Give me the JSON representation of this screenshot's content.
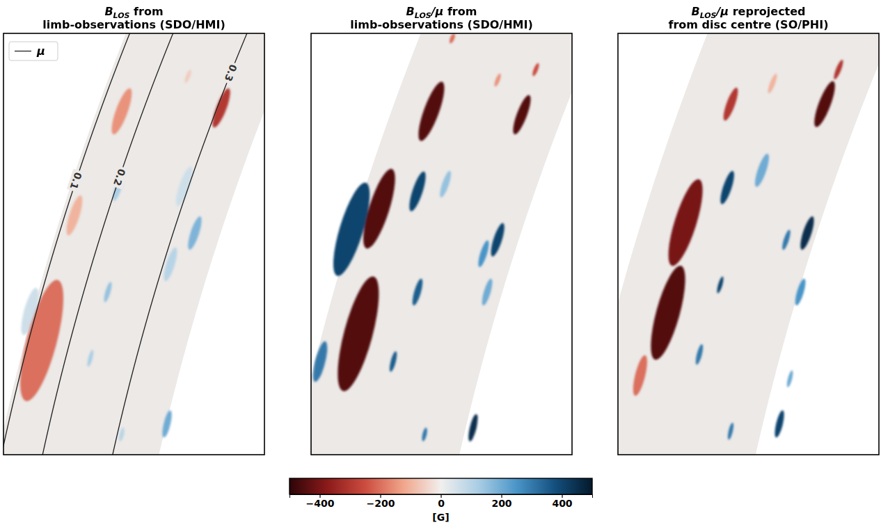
{
  "chart_data": {
    "type": "image-panels",
    "panels": [
      {
        "title": [
          [
            {
              "text": "B",
              "style": "italic"
            },
            {
              "text": "LOS",
              "style": "italic-sub"
            },
            {
              "text": " from"
            }
          ],
          [
            {
              "text": "limb-observations (SDO/HMI)"
            }
          ]
        ],
        "xlim": [
          0,
          1
        ],
        "ylim": [
          0,
          1
        ],
        "tick_labels": false,
        "contours": {
          "name": "μ",
          "levels": [
            0.1,
            0.2,
            0.3
          ],
          "color": "#222222"
        },
        "legend": "upper left",
        "features": [
          {
            "x": 0.693,
            "y": 0.363,
            "value": 60,
            "size": 0.099
          },
          {
            "x": 0.101,
            "y": 0.66,
            "value": 60,
            "size": 0.116
          },
          {
            "x": 0.707,
            "y": 0.102,
            "value": -60,
            "size": 0.033
          },
          {
            "x": 0.272,
            "y": 0.432,
            "value": -100,
            "size": 0.099
          },
          {
            "x": 0.64,
            "y": 0.548,
            "value": 100,
            "size": 0.083
          },
          {
            "x": 0.453,
            "y": 0.952,
            "value": 100,
            "size": 0.033
          },
          {
            "x": 0.44,
            "y": 0.366,
            "value": 120,
            "size": 0.066
          },
          {
            "x": 0.333,
            "y": 0.771,
            "value": 120,
            "size": 0.041
          },
          {
            "x": 0.4,
            "y": 0.614,
            "value": 150,
            "size": 0.05
          },
          {
            "x": 0.453,
            "y": 0.185,
            "value": -150,
            "size": 0.116
          },
          {
            "x": 0.733,
            "y": 0.474,
            "value": 180,
            "size": 0.083
          },
          {
            "x": 0.627,
            "y": 0.927,
            "value": 200,
            "size": 0.066
          },
          {
            "x": 0.147,
            "y": 0.729,
            "value": -200,
            "size": 0.297
          },
          {
            "x": 0.835,
            "y": 0.177,
            "value": -300,
            "size": 0.099
          }
        ]
      },
      {
        "title": [
          [
            {
              "text": "B",
              "style": "italic"
            },
            {
              "text": "LOS",
              "style": "italic-sub"
            },
            {
              "text": "/μ",
              "style": "italic"
            },
            {
              "text": " from"
            }
          ],
          [
            {
              "text": "limb-observations (SDO/HMI)"
            }
          ]
        ],
        "xlim": [
          0,
          1
        ],
        "ylim": [
          0,
          1
        ],
        "tick_labels": false,
        "features": [
          {
            "x": 0.515,
            "y": 0.358,
            "value": 150,
            "size": 0.066
          },
          {
            "x": 0.715,
            "y": 0.111,
            "value": -150,
            "size": 0.033
          },
          {
            "x": 0.541,
            "y": 0.012,
            "value": -200,
            "size": 0.025
          },
          {
            "x": 0.675,
            "y": 0.614,
            "value": 200,
            "size": 0.066
          },
          {
            "x": 0.861,
            "y": 0.086,
            "value": -250,
            "size": 0.033
          },
          {
            "x": 0.661,
            "y": 0.523,
            "value": 250,
            "size": 0.066
          },
          {
            "x": 0.035,
            "y": 0.779,
            "value": 300,
            "size": 0.099
          },
          {
            "x": 0.435,
            "y": 0.952,
            "value": 300,
            "size": 0.033
          },
          {
            "x": 0.315,
            "y": 0.779,
            "value": 350,
            "size": 0.05
          },
          {
            "x": 0.408,
            "y": 0.614,
            "value": 350,
            "size": 0.066
          },
          {
            "x": 0.155,
            "y": 0.465,
            "value": 400,
            "size": 0.231
          },
          {
            "x": 0.715,
            "y": 0.49,
            "value": 400,
            "size": 0.083
          },
          {
            "x": 0.408,
            "y": 0.375,
            "value": 400,
            "size": 0.099
          },
          {
            "x": 0.621,
            "y": 0.936,
            "value": 450,
            "size": 0.066
          },
          {
            "x": 0.461,
            "y": 0.185,
            "value": -450,
            "size": 0.149
          },
          {
            "x": 0.808,
            "y": 0.193,
            "value": -450,
            "size": 0.099
          },
          {
            "x": 0.261,
            "y": 0.416,
            "value": -450,
            "size": 0.198
          },
          {
            "x": 0.181,
            "y": 0.713,
            "value": -450,
            "size": 0.281
          }
        ]
      },
      {
        "title": [
          [
            {
              "text": "B",
              "style": "italic"
            },
            {
              "text": "LOS",
              "style": "italic-sub"
            },
            {
              "text": "/μ",
              "style": "italic"
            },
            {
              "text": " reprojected"
            }
          ],
          [
            {
              "text": "from disc centre (SO/PHI)"
            }
          ]
        ],
        "xlim": [
          0,
          1
        ],
        "ylim": [
          0,
          1
        ],
        "tick_labels": false,
        "features": [
          {
            "x": 0.592,
            "y": 0.119,
            "value": -100,
            "size": 0.05
          },
          {
            "x": 0.085,
            "y": 0.812,
            "value": -200,
            "size": 0.099
          },
          {
            "x": 0.552,
            "y": 0.325,
            "value": 200,
            "size": 0.083
          },
          {
            "x": 0.659,
            "y": 0.82,
            "value": 200,
            "size": 0.041
          },
          {
            "x": 0.699,
            "y": 0.614,
            "value": 250,
            "size": 0.066
          },
          {
            "x": 0.645,
            "y": 0.49,
            "value": 300,
            "size": 0.05
          },
          {
            "x": 0.845,
            "y": 0.086,
            "value": -300,
            "size": 0.05
          },
          {
            "x": 0.432,
            "y": 0.168,
            "value": -300,
            "size": 0.083
          },
          {
            "x": 0.312,
            "y": 0.762,
            "value": 300,
            "size": 0.05
          },
          {
            "x": 0.432,
            "y": 0.944,
            "value": 300,
            "size": 0.041
          },
          {
            "x": 0.619,
            "y": 0.927,
            "value": 400,
            "size": 0.066
          },
          {
            "x": 0.392,
            "y": 0.597,
            "value": 400,
            "size": 0.041
          },
          {
            "x": 0.419,
            "y": 0.366,
            "value": 400,
            "size": 0.083
          },
          {
            "x": 0.725,
            "y": 0.474,
            "value": 450,
            "size": 0.083
          },
          {
            "x": 0.792,
            "y": 0.168,
            "value": -450,
            "size": 0.116
          },
          {
            "x": 0.259,
            "y": 0.449,
            "value": -400,
            "size": 0.215
          },
          {
            "x": 0.192,
            "y": 0.663,
            "value": -450,
            "size": 0.231
          }
        ]
      }
    ],
    "colorbar": {
      "range": [
        -500,
        500
      ],
      "ticks": [
        {
          "value": -400,
          "label": "−400"
        },
        {
          "value": -200,
          "label": "−200"
        },
        0,
        200,
        400
      ],
      "label": "[G]",
      "colors": [
        "#2d0508",
        "#8b1a1a",
        "#cc4c3f",
        "#f0a58a",
        "#f1efee",
        "#a9cde4",
        "#4a95c8",
        "#14507f",
        "#04192b"
      ]
    }
  }
}
